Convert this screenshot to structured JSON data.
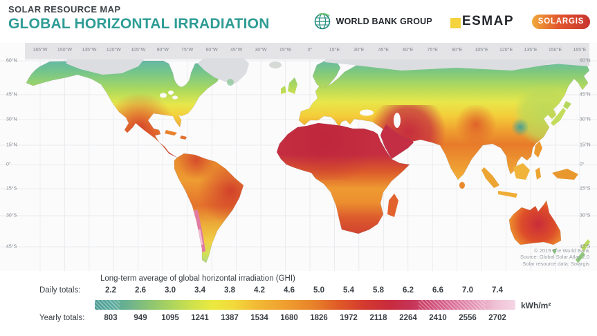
{
  "header": {
    "kicker": "SOLAR RESOURCE MAP",
    "title": "GLOBAL HORIZONTAL IRRADIATION",
    "logos": {
      "world_bank": "WORLD BANK GROUP",
      "esmap": "ESMAP",
      "solargis": "SOLARGIS"
    },
    "accent_color": "#2e9c95"
  },
  "map": {
    "longitude_labels": [
      "165°W",
      "150°W",
      "135°W",
      "120°W",
      "105°W",
      "90°W",
      "75°W",
      "60°W",
      "45°W",
      "30°W",
      "15°W",
      "0°",
      "15°E",
      "30°E",
      "45°E",
      "60°E",
      "75°E",
      "90°E",
      "105°E",
      "120°E",
      "135°E",
      "150°E",
      "165°E"
    ],
    "latitude_labels": [
      "60°N",
      "45°N",
      "30°N",
      "15°N",
      "0°",
      "15°S",
      "30°S",
      "45°S"
    ],
    "credits": [
      "© 2019 The World Bank",
      "Source: Global Solar Atlas 2.0",
      "Solar resource data: Solargis"
    ]
  },
  "legend": {
    "title": "Long-term average of global horizontal irradiation (GHI)",
    "daily_label": "Daily totals:",
    "yearly_label": "Yearly totals:",
    "unit": "kWh/m²",
    "daily_values": [
      "2.2",
      "2.6",
      "3.0",
      "3.4",
      "3.8",
      "4.2",
      "4.6",
      "5.0",
      "5.4",
      "5.8",
      "6.2",
      "6.6",
      "7.0",
      "7.4"
    ],
    "yearly_values": [
      "803",
      "949",
      "1095",
      "1241",
      "1387",
      "1534",
      "1680",
      "1826",
      "1972",
      "2118",
      "2264",
      "2410",
      "2556",
      "2702"
    ],
    "scale_colors": [
      "#4e9c95",
      "#6db28e",
      "#abd45e",
      "#ebe93f",
      "#f2bc35",
      "#e8822a",
      "#d43a2f",
      "#c92b3d",
      "#ce4a74",
      "#e495b5",
      "#f5d6e4"
    ]
  }
}
